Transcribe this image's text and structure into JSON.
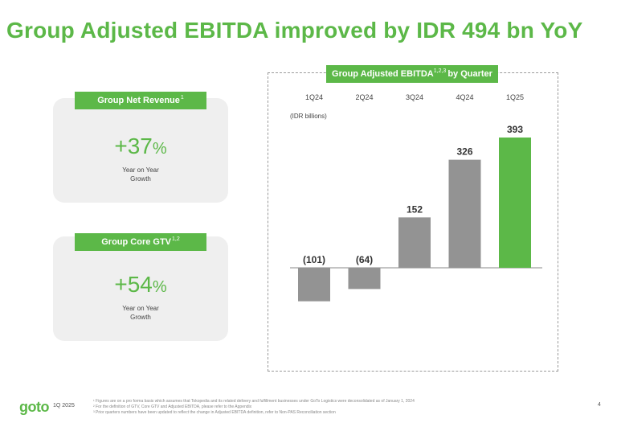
{
  "page": {
    "title": "Group Adjusted EBITDA improved by IDR 494 bn YoY",
    "page_number": "4",
    "period_tag": "1Q 2025",
    "logo_text": "goto"
  },
  "kpis": [
    {
      "header": "Group Net Revenue",
      "header_sup": "1",
      "value": "+37",
      "unit": "%",
      "sub1": "Year on Year",
      "sub2": "Growth"
    },
    {
      "header": "Group Core GTV",
      "header_sup": "1,2",
      "value": "+54",
      "unit": "%",
      "sub1": "Year on Year",
      "sub2": "Growth"
    }
  ],
  "chart_panel": {
    "header_main": "Group Adjusted EBITDA",
    "header_sup": "1,2,3",
    "header_suffix": "by Quarter",
    "unit_label": "(IDR billions)"
  },
  "chart_data": {
    "type": "bar",
    "categories": [
      "1Q24",
      "2Q24",
      "3Q24",
      "4Q24",
      "1Q25"
    ],
    "values": [
      -101,
      -64,
      152,
      326,
      393
    ],
    "data_labels": [
      "(101)",
      "(64)",
      "152",
      "326",
      "393"
    ],
    "ylabel": "(IDR billions)",
    "colors": {
      "negative_and_past": "#939393",
      "highlight": "#5cb848"
    },
    "highlight_index": 4
  },
  "footnotes": [
    "¹ Figures are on a pro forma basis which assumes that Tokopedia and its related delivery and fulfillment businesses under GoTo Logistics were deconsolidated as of January 1, 2024",
    "² For the definition of GTV, Core GTV and Adjusted EBITDA, please refer to the Appendix",
    "³ Prior quarters numbers have been updated to reflect the change in Adjusted EBITDA definition, refer to Non-PAS Reconciliation section"
  ],
  "colors": {
    "brand_green": "#5cb848",
    "card_bg": "#efefef"
  }
}
